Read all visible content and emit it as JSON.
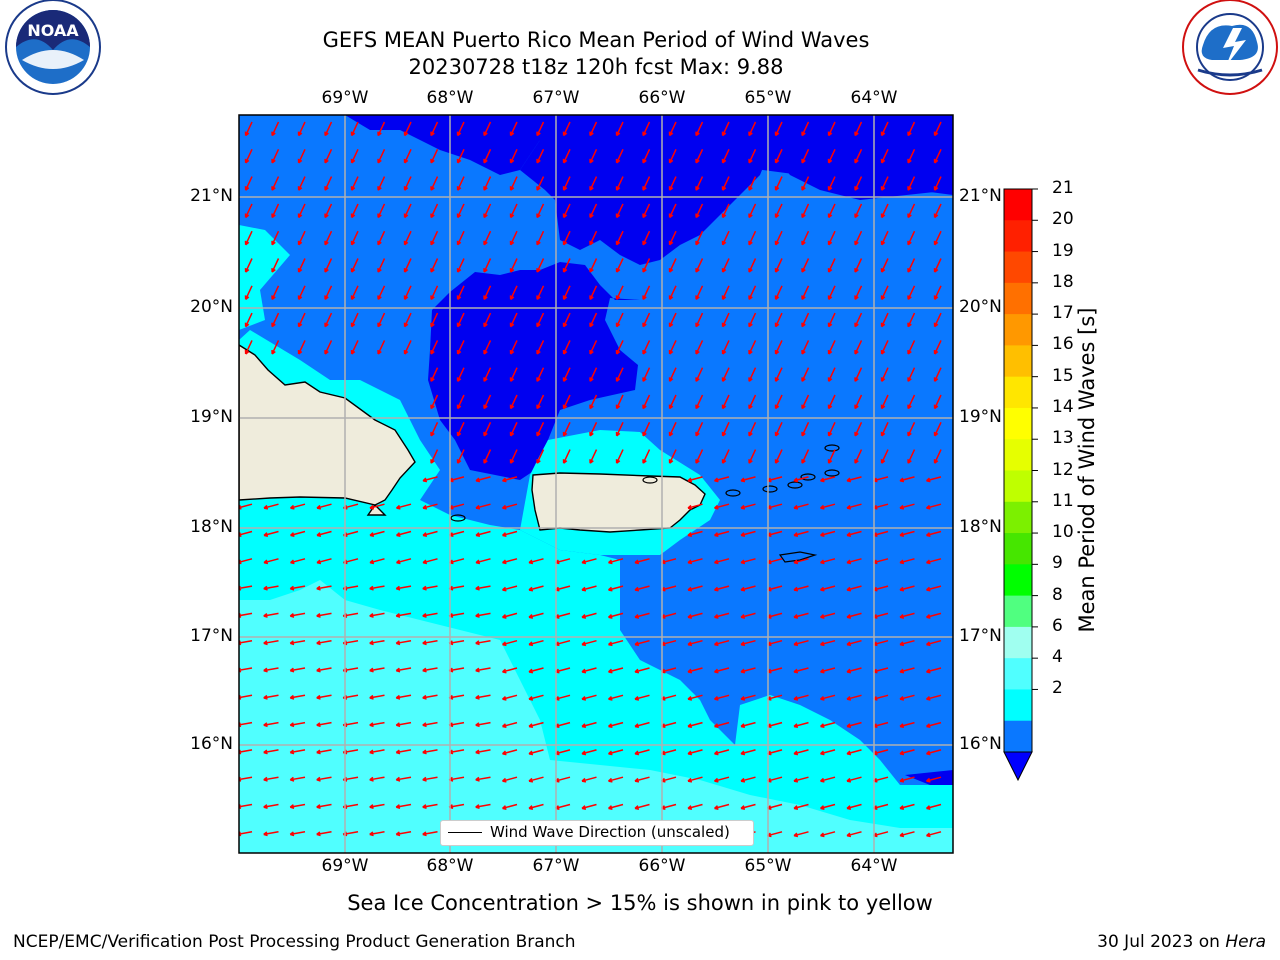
{
  "header": {
    "title_line1": "GEFS MEAN Puerto Rico Mean Period of Wind Waves",
    "title_line2": "20230728 t18z 120h fcst   Max: 9.88"
  },
  "logos": {
    "left": "NOAA",
    "left_ring": "NATIONAL OCEANIC AND ATMOSPHERIC ADMINISTRATION · U.S. DEPARTMENT OF COMMERCE",
    "right_ring": "NATIONAL WEATHER SERVICE"
  },
  "axes": {
    "lon_labels": [
      "69°W",
      "68°W",
      "67°W",
      "66°W",
      "65°W",
      "64°W"
    ],
    "lat_labels": [
      "21°N",
      "20°N",
      "19°N",
      "18°N",
      "17°N",
      "16°N"
    ]
  },
  "legend": {
    "label": "Wind Wave Direction (unscaled)"
  },
  "colorbar": {
    "label": "Mean Period of Wind Waves [s]",
    "ticks": [
      "21",
      "20",
      "19",
      "18",
      "17",
      "16",
      "15",
      "14",
      "13",
      "12",
      "11",
      "10",
      "9",
      "8",
      "6",
      "4",
      "2"
    ],
    "colors": [
      "#ff0000",
      "#ff2000",
      "#ff4800",
      "#ff7000",
      "#ff9800",
      "#ffbf00",
      "#ffe600",
      "#ffff00",
      "#e6ff00",
      "#bfff00",
      "#7cf000",
      "#46e600",
      "#00ff00",
      "#50ff80",
      "#a0fff0",
      "#50ffff",
      "#00ffff",
      "#0a78ff"
    ],
    "extend_color": "#0000ff"
  },
  "map_colors": {
    "deep": "#0000f0",
    "mid": "#0a78ff",
    "light": "#00ffff",
    "lighter": "#50ffff",
    "land": "#efecdc",
    "arrow": "#ff0000"
  },
  "footer": {
    "note": "Sea Ice Concentration > 15% is shown in pink to yellow",
    "left": "NCEP/EMC/Verification Post Processing Product Generation Branch",
    "right_date": "30 Jul 2023 on ",
    "right_host": "Hera"
  }
}
